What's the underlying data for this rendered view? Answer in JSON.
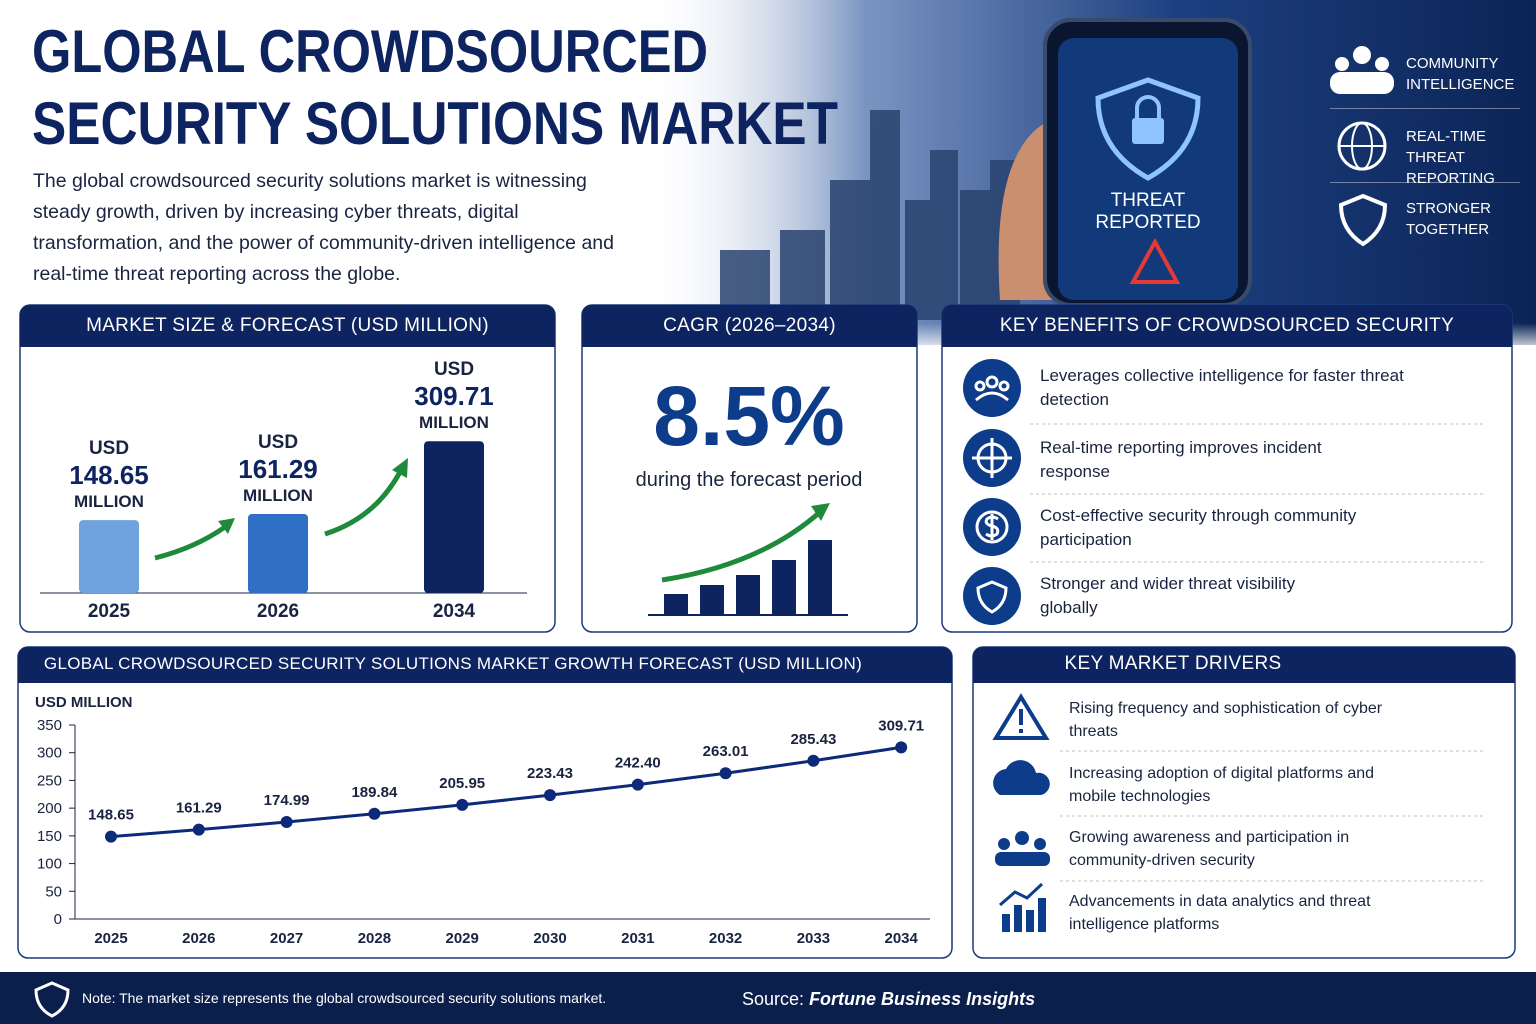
{
  "header": {
    "title_line1": "GLOBAL CROWDSOURCED",
    "title_line2": "SECURITY SOLUTIONS MARKET",
    "description": "The global crowdsourced security solutions market is witnessing steady growth, driven by increasing cyber threats, digital transformation, and the power of community-driven intelligence and real-time threat reporting across the globe."
  },
  "hero": {
    "phone_alert": "THREAT REPORTED",
    "highlights": [
      "COMMUNITY INTELLIGENCE",
      "REAL-TIME THREAT REPORTING",
      "STRONGER TOGETHER"
    ]
  },
  "chart_data": [
    {
      "type": "bar",
      "title": "MARKET SIZE & FORECAST (USD MILLION)",
      "categories": [
        "2025",
        "2026",
        "2034"
      ],
      "values": [
        148.65,
        161.29,
        309.71
      ],
      "colors": [
        "#6fa3de",
        "#2f6fc4",
        "#0d2461"
      ],
      "unit_prefix": "USD",
      "unit_suffix": "MILLION"
    },
    {
      "type": "line",
      "title": "GLOBAL CROWDSOURCED SECURITY SOLUTIONS MARKET GROWTH FORECAST (USD MILLION)",
      "y_label": "USD MILLION",
      "categories": [
        "2025",
        "2026",
        "2027",
        "2028",
        "2029",
        "2030",
        "2031",
        "2032",
        "2033",
        "2034"
      ],
      "values": [
        148.65,
        161.29,
        174.99,
        189.84,
        205.95,
        223.43,
        242.4,
        263.01,
        285.43,
        309.71
      ],
      "value_labels": [
        "148.65",
        "161.29",
        "174.99",
        "189.84",
        "205.95",
        "223.43",
        "242.40",
        "263.01",
        "285.43",
        "309.71"
      ],
      "color": "#0d2a7a",
      "ylim": [
        0,
        350
      ],
      "yticks": [
        0,
        50,
        100,
        150,
        200,
        250,
        300,
        350
      ],
      "grid": false
    }
  ],
  "cagr": {
    "title": "CAGR (2026–2034)",
    "value": "8.5%",
    "caption": "during the forecast period"
  },
  "benefits": {
    "title": "KEY BENEFITS OF CROWDSOURCED SECURITY",
    "items": [
      "Leverages collective intelligence for faster threat detection",
      "Real-time reporting improves incident response",
      "Cost-effective security through community participation",
      "Stronger and wider threat visibility globally"
    ]
  },
  "drivers": {
    "title": "KEY MARKET DRIVERS",
    "items": [
      "Rising frequency and sophistication of cyber threats",
      "Increasing adoption of digital platforms and mobile technologies",
      "Growing awareness and participation in community-driven security",
      "Advancements in data analytics and threat intelligence platforms"
    ]
  },
  "footer": {
    "note": "Note: The market size represents the global crowdsourced security solutions market.",
    "source_label": "Source:",
    "source": "Fortune Business Insights"
  }
}
